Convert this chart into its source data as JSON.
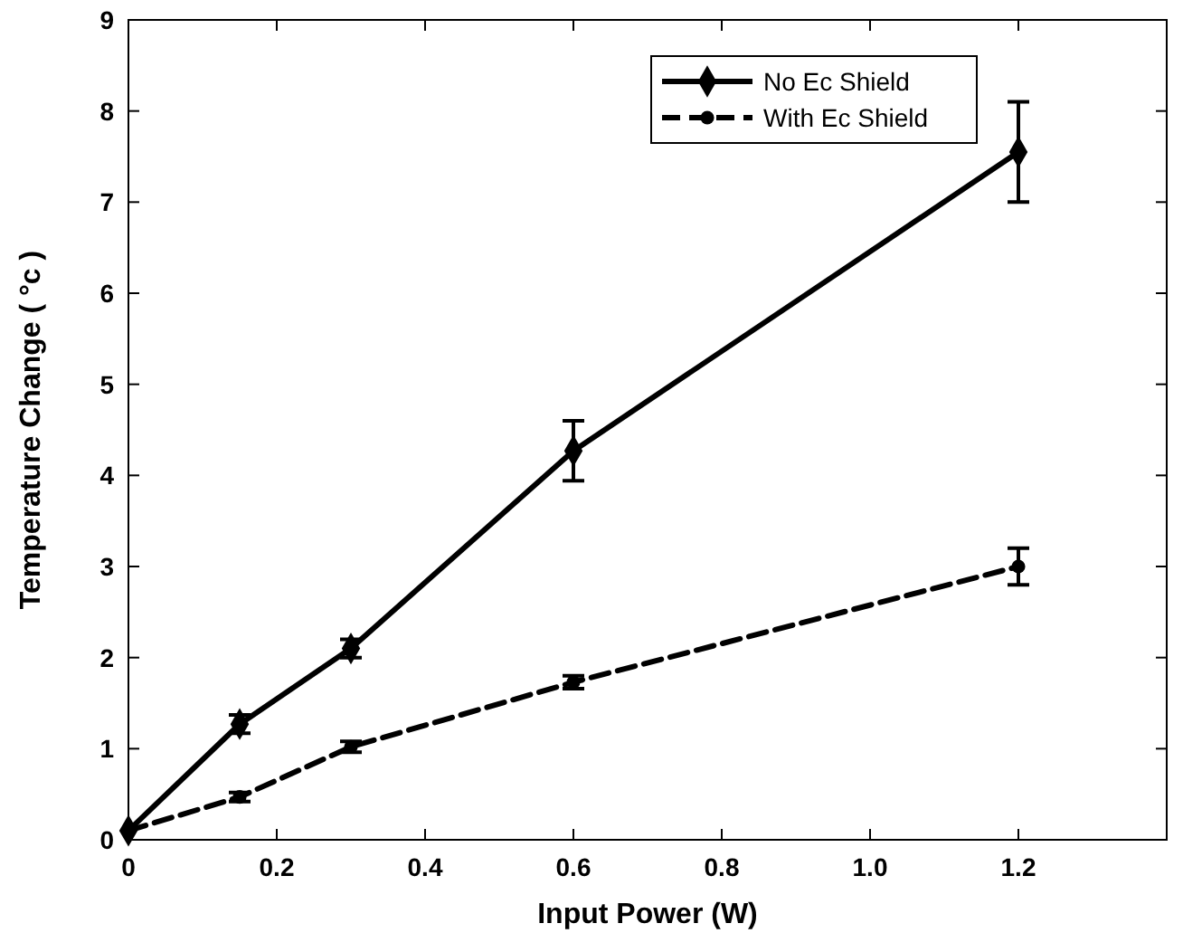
{
  "chart_data": {
    "type": "line",
    "xlabel": "Input Power (W)",
    "ylabel": "Temperature Change ( °c )",
    "xlim": [
      0,
      1.4
    ],
    "ylim": [
      0,
      9
    ],
    "xticks": [
      0,
      0.2,
      0.4,
      0.6,
      0.8,
      {
        "value": 1.0,
        "label": "1.0"
      },
      1.2
    ],
    "yticks": [
      0,
      1,
      2,
      3,
      4,
      5,
      6,
      7,
      8,
      9
    ],
    "grid": false,
    "legend": "top right",
    "x": [
      0,
      0.15,
      0.3,
      0.6,
      1.2
    ],
    "series": [
      {
        "name": "No Ec Shield",
        "color": "#000000",
        "marker": "diamond",
        "line_style": "solid",
        "values": [
          0.1,
          1.27,
          2.1,
          4.27,
          7.55
        ],
        "errors": [
          null,
          0.1,
          0.1,
          0.33,
          0.55
        ]
      },
      {
        "name": "With Ec Shield",
        "color": "#000000",
        "marker": "circle",
        "line_style": "dashed",
        "values": [
          0.1,
          0.47,
          1.02,
          1.73,
          3.0
        ],
        "errors": [
          null,
          0.05,
          0.06,
          0.07,
          0.2
        ]
      }
    ]
  }
}
